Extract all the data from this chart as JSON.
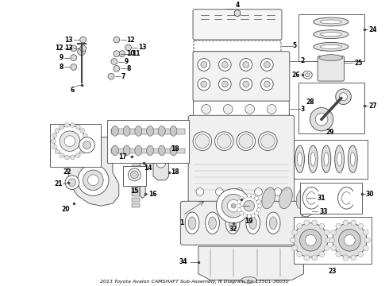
{
  "title": "2013 Toyota Avalon CAMSHAFT Sub-Assembly, N Diagram for 13501-36030",
  "background_color": "#ffffff",
  "line_color": "#444444",
  "text_color": "#000000",
  "fig_width": 4.9,
  "fig_height": 3.6,
  "dpi": 100
}
